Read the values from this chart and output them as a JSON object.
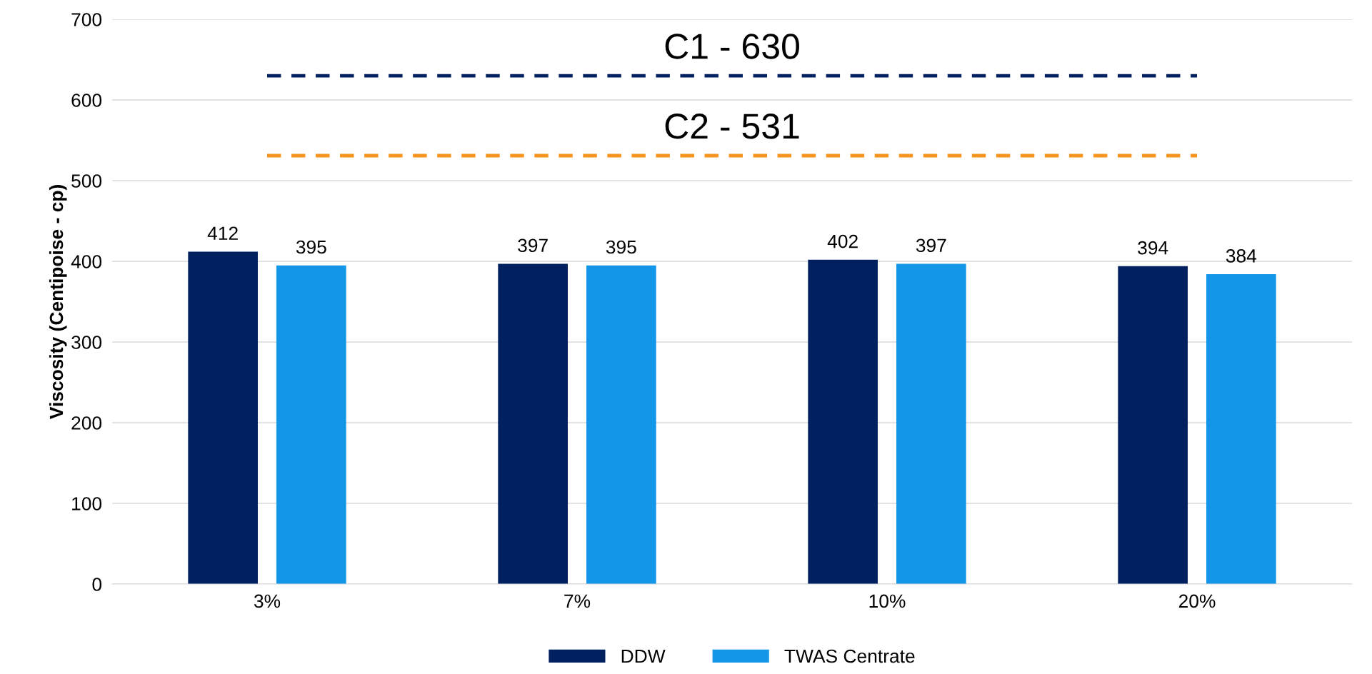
{
  "chart_data": {
    "type": "bar",
    "ylabel": "Viscosity (Centipoise - cp)",
    "categories": [
      "3%",
      "7%",
      "10%",
      "20%"
    ],
    "series": [
      {
        "name": "DDW",
        "color": "#002060",
        "values": [
          412,
          397,
          402,
          394
        ]
      },
      {
        "name": "TWAS Centrate",
        "color": "#1496e8",
        "values": [
          395,
          395,
          397,
          384
        ]
      }
    ],
    "ylim": [
      0,
      700
    ],
    "yticks": [
      0,
      100,
      200,
      300,
      400,
      500,
      600,
      700
    ],
    "ref_lines": [
      {
        "axis": "y",
        "value": 630,
        "label": "C1 - 630",
        "color": "#002060",
        "line_style": "dashed"
      },
      {
        "axis": "y",
        "value": 531,
        "label": "C2 - 531",
        "color": "#f7941d",
        "line_style": "dashed"
      }
    ],
    "data_labels": true,
    "grid": "y",
    "legend": "bottom"
  }
}
